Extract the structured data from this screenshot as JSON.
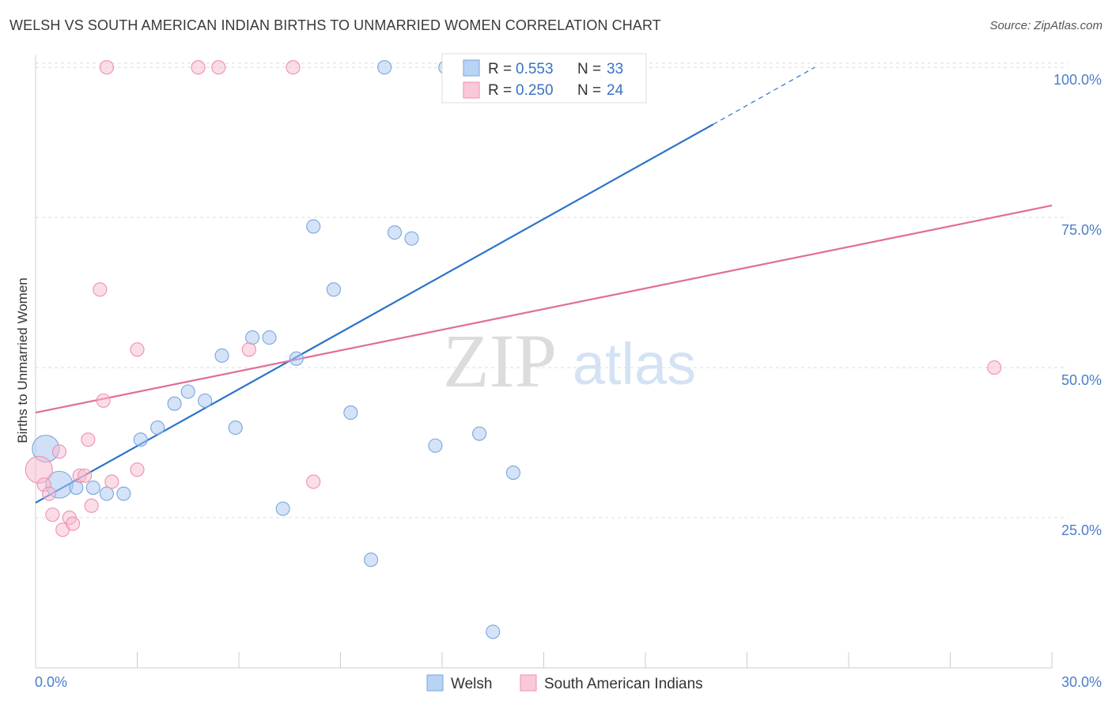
{
  "header": {
    "title": "WELSH VS SOUTH AMERICAN INDIAN BIRTHS TO UNMARRIED WOMEN CORRELATION CHART",
    "source": "Source: ZipAtlas.com"
  },
  "watermark": {
    "zip": "ZIP",
    "atlas": "atlas"
  },
  "chart_data": {
    "type": "scatter",
    "title": "WELSH VS SOUTH AMERICAN INDIAN BIRTHS TO UNMARRIED WOMEN CORRELATION CHART",
    "xlabel": "",
    "ylabel": "Births to Unmarried Women",
    "xlim": [
      0,
      30
    ],
    "ylim": [
      0,
      102
    ],
    "x_tick_labels": {
      "min": "0.0%",
      "max": "30.0%"
    },
    "y_ticks": [
      {
        "value": 25,
        "label": "25.0%"
      },
      {
        "value": 50,
        "label": "50.0%"
      },
      {
        "value": 75,
        "label": "75.0%"
      },
      {
        "value": 100,
        "label": "100.0%"
      }
    ],
    "grid": true,
    "legend": {
      "placement": "top-center",
      "entries": [
        {
          "r_label": "R =",
          "r_value": "0.553",
          "n_label": "N =",
          "n_value": "33"
        },
        {
          "r_label": "R =",
          "r_value": "0.250",
          "n_label": "N =",
          "n_value": "24"
        }
      ]
    },
    "series": [
      {
        "name": "Welsh",
        "color": "#a9c8f0",
        "stroke": "#7aa6dc",
        "line_color": "#2c72cc",
        "trend": {
          "x0": 0,
          "y0": 27.5,
          "x1": 20,
          "y1": 90.5,
          "dash_to_x": 23,
          "dash_to_y": 100
        },
        "points": [
          {
            "x": 0.3,
            "y": 36.5,
            "big": true
          },
          {
            "x": 0.7,
            "y": 30.5,
            "big": true
          },
          {
            "x": 1.2,
            "y": 30
          },
          {
            "x": 1.7,
            "y": 30
          },
          {
            "x": 2.1,
            "y": 29
          },
          {
            "x": 2.6,
            "y": 29
          },
          {
            "x": 3.1,
            "y": 38
          },
          {
            "x": 3.6,
            "y": 40
          },
          {
            "x": 4.1,
            "y": 44
          },
          {
            "x": 4.5,
            "y": 46
          },
          {
            "x": 5.0,
            "y": 44.5
          },
          {
            "x": 5.5,
            "y": 52
          },
          {
            "x": 5.9,
            "y": 40
          },
          {
            "x": 6.4,
            "y": 55
          },
          {
            "x": 6.9,
            "y": 55
          },
          {
            "x": 7.3,
            "y": 26.5
          },
          {
            "x": 7.7,
            "y": 51.5
          },
          {
            "x": 8.2,
            "y": 73.5
          },
          {
            "x": 8.8,
            "y": 63
          },
          {
            "x": 9.3,
            "y": 42.5
          },
          {
            "x": 9.9,
            "y": 18
          },
          {
            "x": 10.3,
            "y": 100
          },
          {
            "x": 10.6,
            "y": 72.5
          },
          {
            "x": 11.1,
            "y": 71.5
          },
          {
            "x": 11.8,
            "y": 37
          },
          {
            "x": 12.1,
            "y": 100
          },
          {
            "x": 12.4,
            "y": 100
          },
          {
            "x": 13.1,
            "y": 39
          },
          {
            "x": 13.5,
            "y": 6
          },
          {
            "x": 14.1,
            "y": 32.5
          },
          {
            "x": 14.5,
            "y": 100
          },
          {
            "x": 16.3,
            "y": 100
          },
          {
            "x": 17.1,
            "y": 100
          }
        ]
      },
      {
        "name": "South American Indians",
        "color": "#f7bcd0",
        "stroke": "#ee8fb0",
        "line_color": "#e06e97",
        "trend": {
          "x0": 0,
          "y0": 42.5,
          "x1": 30,
          "y1": 77
        },
        "points": [
          {
            "x": 0.1,
            "y": 33,
            "big": true
          },
          {
            "x": 0.25,
            "y": 30.5
          },
          {
            "x": 0.4,
            "y": 29
          },
          {
            "x": 0.5,
            "y": 25.5
          },
          {
            "x": 0.7,
            "y": 36
          },
          {
            "x": 0.8,
            "y": 23
          },
          {
            "x": 1.0,
            "y": 25
          },
          {
            "x": 1.1,
            "y": 24
          },
          {
            "x": 1.3,
            "y": 32
          },
          {
            "x": 1.45,
            "y": 32
          },
          {
            "x": 1.55,
            "y": 38
          },
          {
            "x": 1.65,
            "y": 27
          },
          {
            "x": 1.9,
            "y": 63
          },
          {
            "x": 2.0,
            "y": 44.5
          },
          {
            "x": 2.1,
            "y": 100
          },
          {
            "x": 2.25,
            "y": 31
          },
          {
            "x": 3.0,
            "y": 53
          },
          {
            "x": 3.0,
            "y": 33
          },
          {
            "x": 4.8,
            "y": 100
          },
          {
            "x": 5.4,
            "y": 100
          },
          {
            "x": 6.3,
            "y": 53
          },
          {
            "x": 7.6,
            "y": 100
          },
          {
            "x": 8.2,
            "y": 31
          },
          {
            "x": 28.3,
            "y": 50
          }
        ]
      }
    ]
  }
}
